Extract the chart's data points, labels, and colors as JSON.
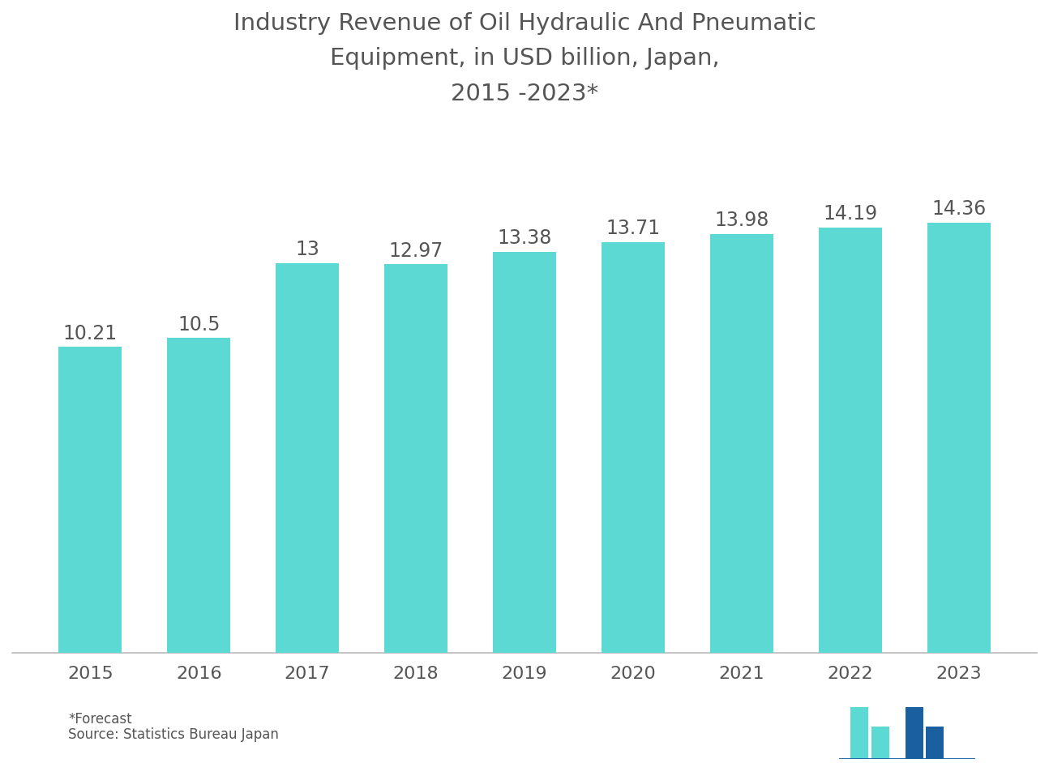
{
  "title": "Industry Revenue of Oil Hydraulic And Pneumatic\nEquipment, in USD billion, Japan,\n2015 -2023*",
  "years": [
    "2015",
    "2016",
    "2017",
    "2018",
    "2019",
    "2020",
    "2021",
    "2022",
    "2023"
  ],
  "values": [
    10.21,
    10.5,
    13.0,
    12.97,
    13.38,
    13.71,
    13.98,
    14.19,
    14.36
  ],
  "bar_color": "#5DD9D4",
  "background_color": "#ffffff",
  "text_color": "#555555",
  "title_color": "#555555",
  "label_color": "#555555",
  "spine_color": "#bbbbbb",
  "footnote1": "*Forecast",
  "footnote2": "Source: Statistics Bureau Japan",
  "ylim": [
    0,
    17.5
  ],
  "bar_width": 0.58,
  "title_fontsize": 21,
  "label_fontsize": 17,
  "tick_fontsize": 16,
  "footnote_fontsize": 12,
  "logo_bar_color": "#5DD9D4",
  "logo_dark_color": "#1a5fa0"
}
